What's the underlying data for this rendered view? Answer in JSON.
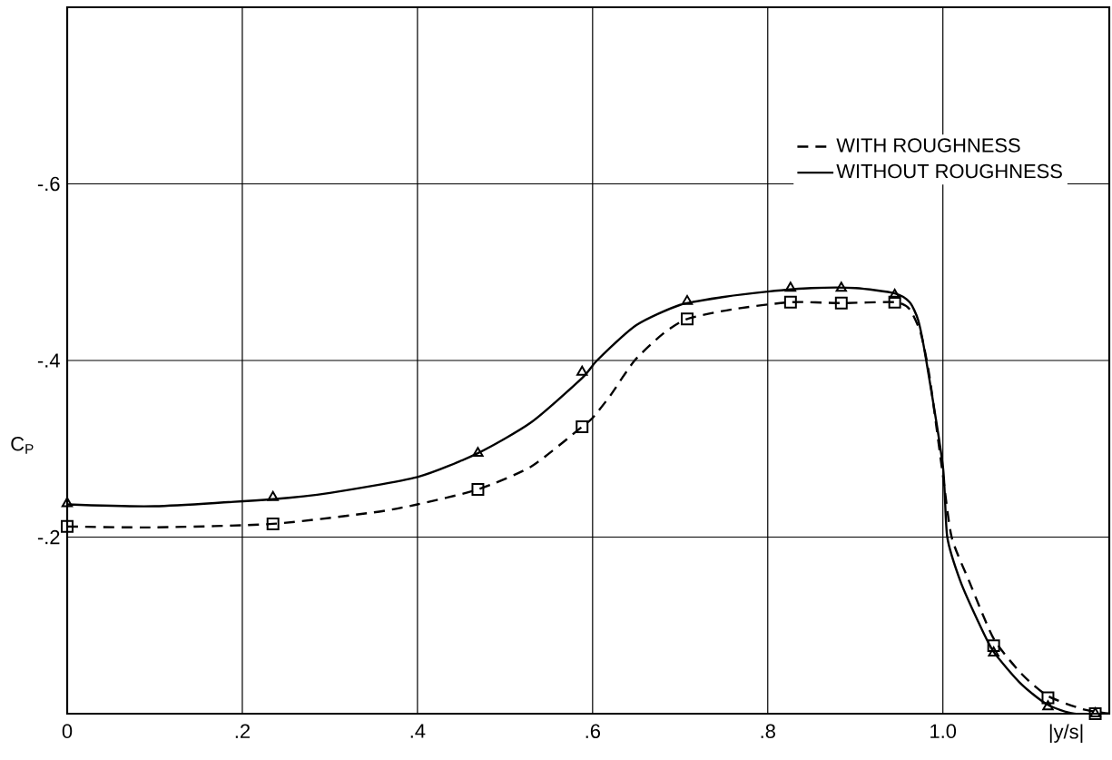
{
  "chart_data": {
    "type": "line",
    "xlabel": "|y/s|",
    "ylabel": "C$_{P}$",
    "xlim": [
      0,
      1.19
    ],
    "ylim": [
      0,
      -0.8
    ],
    "xticks": [
      {
        "value": 0,
        "label": "0"
      },
      {
        "value": 0.2,
        "label": ".2"
      },
      {
        "value": 0.4,
        "label": ".4"
      },
      {
        "value": 0.6,
        "label": ".6"
      },
      {
        "value": 0.8,
        "label": ".8"
      },
      {
        "value": 1.0,
        "label": "1.0"
      }
    ],
    "yticks": [
      {
        "value": -0.2,
        "label": "-.2"
      },
      {
        "value": -0.4,
        "label": "-.4"
      },
      {
        "value": -0.6,
        "label": "-.6"
      }
    ],
    "grid": true,
    "legend": "top right",
    "series": [
      {
        "name": "WITH ROUGHNESS",
        "line_style": "dashed",
        "marker": "none",
        "color": "#000000",
        "x": [
          0,
          0.1,
          0.235,
          0.35,
          0.4,
          0.469,
          0.53,
          0.588,
          0.6,
          0.62,
          0.648,
          0.68,
          0.708,
          0.76,
          0.826,
          0.884,
          0.945,
          0.962,
          0.975,
          0.985,
          1.0,
          1.01,
          1.03,
          1.058,
          1.09,
          1.12,
          1.16,
          1.19
        ],
        "values": [
          -0.212,
          -0.211,
          -0.215,
          -0.228,
          -0.237,
          -0.254,
          -0.28,
          -0.325,
          -0.335,
          -0.36,
          -0.4,
          -0.43,
          -0.447,
          -0.458,
          -0.466,
          -0.465,
          -0.466,
          -0.458,
          -0.43,
          -0.38,
          -0.27,
          -0.2,
          -0.15,
          -0.085,
          -0.045,
          -0.02,
          -0.005,
          0
        ]
      },
      {
        "name": "WITHOUT ROUGHNESS",
        "line_style": "solid",
        "marker": "none",
        "color": "#000000",
        "x": [
          0,
          0.1,
          0.235,
          0.3,
          0.4,
          0.469,
          0.53,
          0.588,
          0.605,
          0.65,
          0.7,
          0.75,
          0.8,
          0.85,
          0.9,
          0.945,
          0.962,
          0.972,
          0.981,
          1.0,
          1.005,
          1.02,
          1.04,
          1.058,
          1.09,
          1.12,
          1.15,
          1.19
        ],
        "values": [
          -0.237,
          -0.235,
          -0.243,
          -0.25,
          -0.268,
          -0.295,
          -0.33,
          -0.38,
          -0.4,
          -0.44,
          -0.463,
          -0.472,
          -0.478,
          -0.482,
          -0.482,
          -0.476,
          -0.466,
          -0.445,
          -0.4,
          -0.28,
          -0.2,
          -0.15,
          -0.105,
          -0.07,
          -0.033,
          -0.01,
          0,
          0
        ]
      },
      {
        "type": "scatter",
        "marker": "square",
        "color": "#000000",
        "x": [
          0,
          0.235,
          0.469,
          0.588,
          0.708,
          0.826,
          0.884,
          0.945,
          1.058,
          1.12,
          1.174
        ],
        "values": [
          -0.212,
          -0.215,
          -0.254,
          -0.325,
          -0.447,
          -0.466,
          -0.465,
          -0.466,
          -0.077,
          -0.018,
          0
        ]
      },
      {
        "type": "scatter",
        "marker": "triangle",
        "color": "#000000",
        "x": [
          0,
          0.235,
          0.469,
          0.588,
          0.708,
          0.826,
          0.884,
          0.945,
          1.058,
          1.12,
          1.174
        ],
        "values": [
          -0.238,
          -0.245,
          -0.295,
          -0.387,
          -0.467,
          -0.482,
          -0.482,
          -0.474,
          -0.069,
          -0.008,
          0
        ]
      }
    ]
  }
}
